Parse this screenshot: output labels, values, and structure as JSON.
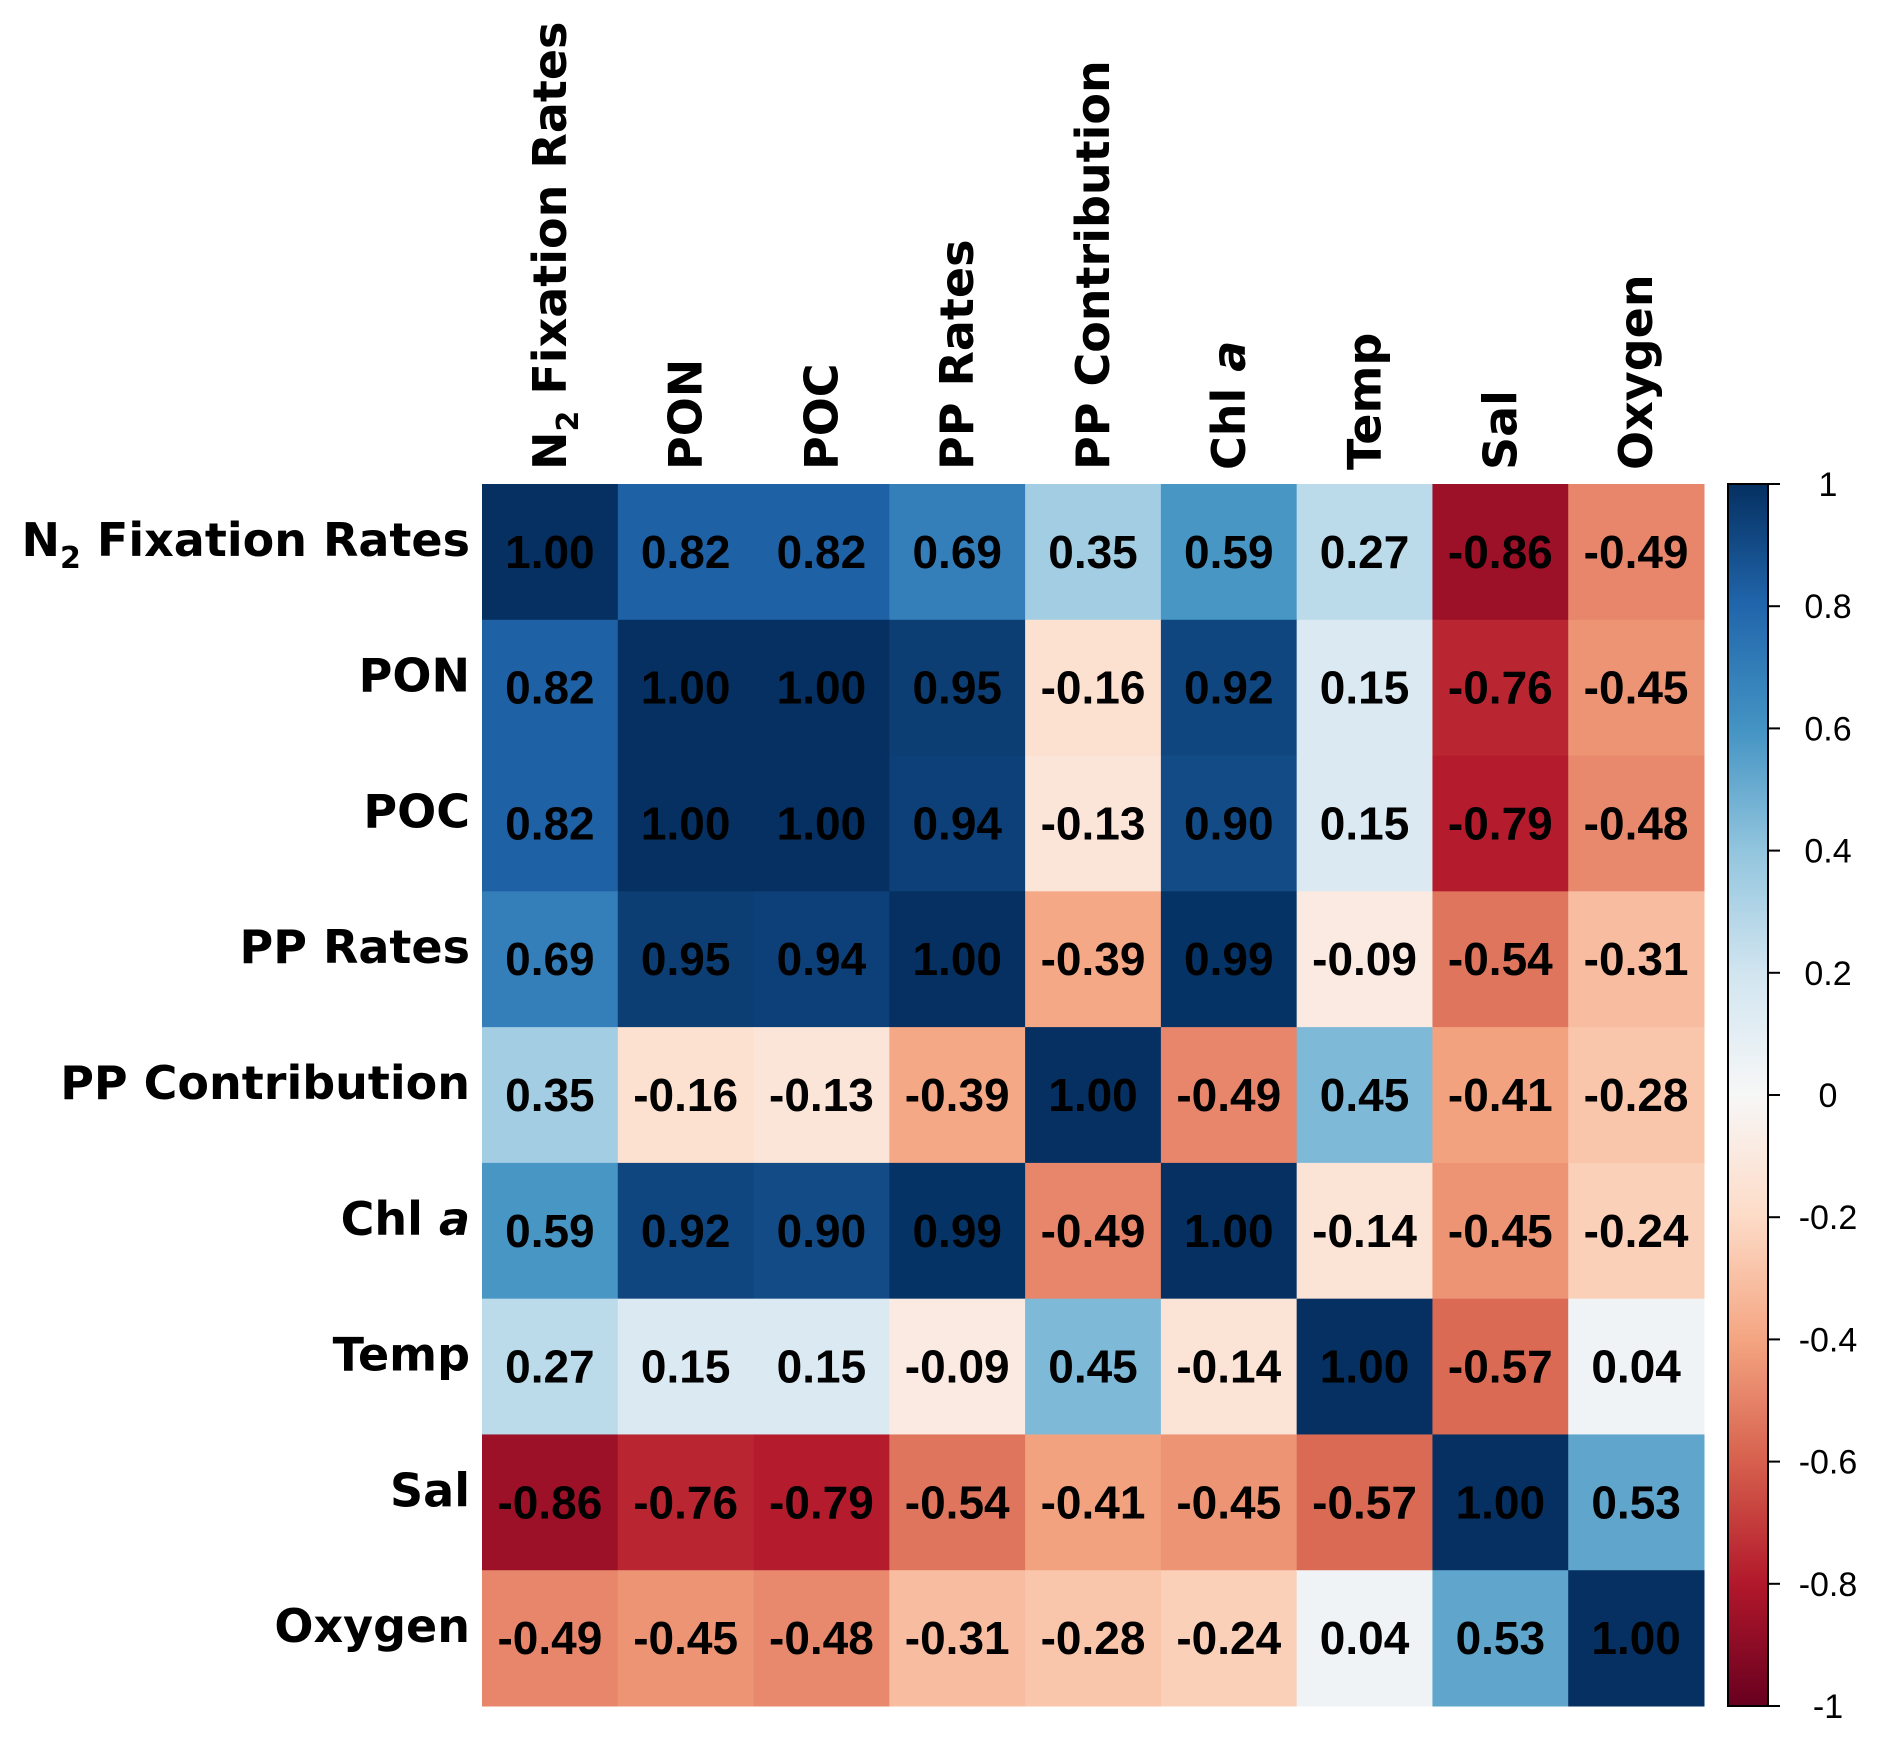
{
  "chart_data": {
    "type": "heatmap",
    "title": "",
    "variables": [
      {
        "label": "Fixation Rates",
        "prefix": "N",
        "subscript": "2",
        "italic_suffix": ""
      },
      {
        "label": "PON",
        "prefix": "",
        "subscript": "",
        "italic_suffix": ""
      },
      {
        "label": "POC",
        "prefix": "",
        "subscript": "",
        "italic_suffix": ""
      },
      {
        "label": "PP Rates",
        "prefix": "",
        "subscript": "",
        "italic_suffix": ""
      },
      {
        "label": "PP Contribution",
        "prefix": "",
        "subscript": "",
        "italic_suffix": ""
      },
      {
        "label": "Chl",
        "prefix": "",
        "subscript": "",
        "italic_suffix": "a"
      },
      {
        "label": "Temp",
        "prefix": "",
        "subscript": "",
        "italic_suffix": ""
      },
      {
        "label": "Sal",
        "prefix": "",
        "subscript": "",
        "italic_suffix": ""
      },
      {
        "label": "Oxygen",
        "prefix": "",
        "subscript": "",
        "italic_suffix": ""
      }
    ],
    "row_labels": [
      "N2 Fixation Rates",
      "PON",
      "POC",
      "PP Rates",
      "PP Contribution",
      "Chl a",
      "Temp",
      "Sal",
      "Oxygen"
    ],
    "col_labels": [
      "N2 Fixation Rates",
      "PON",
      "POC",
      "PP Rates",
      "PP Contribution",
      "Chl a",
      "Temp",
      "Sal",
      "Oxygen"
    ],
    "values": [
      [
        1.0,
        0.82,
        0.82,
        0.69,
        0.35,
        0.59,
        0.27,
        -0.86,
        -0.49
      ],
      [
        0.82,
        1.0,
        1.0,
        0.95,
        -0.16,
        0.92,
        0.15,
        -0.76,
        -0.45
      ],
      [
        0.82,
        1.0,
        1.0,
        0.94,
        -0.13,
        0.9,
        0.15,
        -0.79,
        -0.48
      ],
      [
        0.69,
        0.95,
        0.94,
        1.0,
        -0.39,
        0.99,
        -0.09,
        -0.54,
        -0.31
      ],
      [
        0.35,
        -0.16,
        -0.13,
        -0.39,
        1.0,
        -0.49,
        0.45,
        -0.41,
        -0.28
      ],
      [
        0.59,
        0.92,
        0.9,
        0.99,
        -0.49,
        1.0,
        -0.14,
        -0.45,
        -0.24
      ],
      [
        0.27,
        0.15,
        0.15,
        -0.09,
        0.45,
        -0.14,
        1.0,
        -0.57,
        0.04
      ],
      [
        -0.86,
        -0.76,
        -0.79,
        -0.54,
        -0.41,
        -0.45,
        -0.57,
        1.0,
        0.53
      ],
      [
        -0.49,
        -0.45,
        -0.48,
        -0.31,
        -0.28,
        -0.24,
        0.04,
        0.53,
        1.0
      ]
    ],
    "value_format_decimals": 2,
    "colorbar": {
      "range": [
        -1,
        1
      ],
      "ticks": [
        1,
        0.8,
        0.6,
        0.4,
        0.2,
        0,
        -0.2,
        -0.4,
        -0.6,
        -0.8,
        -1
      ],
      "tick_labels": [
        "1",
        "0.8",
        "0.6",
        "0.4",
        "0.2",
        "0",
        "-0.2",
        "-0.4",
        "-0.6",
        "-0.8",
        "-1"
      ],
      "placement": "right",
      "colormap": "RdBu",
      "stops": [
        {
          "v": -1.0,
          "color": "#67001f"
        },
        {
          "v": -0.8,
          "color": "#b2182b"
        },
        {
          "v": -0.6,
          "color": "#d6604d"
        },
        {
          "v": -0.4,
          "color": "#f4a582"
        },
        {
          "v": -0.2,
          "color": "#fddbc7"
        },
        {
          "v": 0.0,
          "color": "#f7f7f7"
        },
        {
          "v": 0.2,
          "color": "#d1e5f0"
        },
        {
          "v": 0.4,
          "color": "#92c5de"
        },
        {
          "v": 0.6,
          "color": "#4393c3"
        },
        {
          "v": 0.8,
          "color": "#2166ac"
        },
        {
          "v": 1.0,
          "color": "#053061"
        }
      ]
    },
    "text_color": "#000000",
    "legend": "right"
  }
}
